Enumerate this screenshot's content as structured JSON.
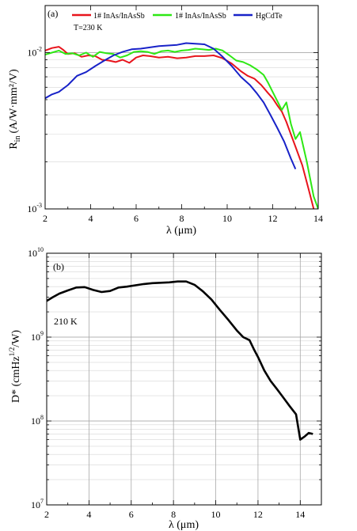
{
  "chart_data": [
    {
      "type": "line",
      "panel_label": "(a)",
      "xlabel": "λ (μm)",
      "ylabel_main": "R",
      "ylabel_sub": "in",
      "ylabel_unit": "(A/W·mm²/V)",
      "xlim": [
        2,
        14
      ],
      "ylim": [
        0.001,
        0.02
      ],
      "yscale": "log",
      "x_ticks": [
        2,
        4,
        6,
        8,
        10,
        12,
        14
      ],
      "y_tick_labels": [
        {
          "value": 0.01,
          "base": "10",
          "exp": "-2"
        },
        {
          "value": 0.001,
          "base": "10",
          "exp": "-3"
        }
      ],
      "grid": "horizontal minor",
      "legend_placement": "top",
      "annotation": "T=230 K",
      "series": [
        {
          "name": "1# InAs/InAsSb",
          "color": "#e8141c",
          "x": [
            2.0,
            2.3,
            2.6,
            2.8,
            3.0,
            3.3,
            3.6,
            3.9,
            4.2,
            4.5,
            4.8,
            5.1,
            5.4,
            5.7,
            6.0,
            6.3,
            6.6,
            7.0,
            7.4,
            7.8,
            8.2,
            8.6,
            9.0,
            9.4,
            9.8,
            10.2,
            10.6,
            10.9,
            11.2,
            11.5,
            11.8,
            12.0,
            12.2,
            12.4,
            12.6,
            12.8,
            13.0,
            13.3,
            13.6,
            13.8
          ],
          "y": [
            0.0103,
            0.0107,
            0.0109,
            0.0104,
            0.0098,
            0.0099,
            0.0094,
            0.0096,
            0.0095,
            0.009,
            0.0089,
            0.0087,
            0.009,
            0.0086,
            0.0093,
            0.0096,
            0.0095,
            0.0093,
            0.0094,
            0.0092,
            0.0093,
            0.0095,
            0.0095,
            0.0096,
            0.0092,
            0.0085,
            0.0076,
            0.0071,
            0.0068,
            0.0062,
            0.0055,
            0.0051,
            0.0046,
            0.0042,
            0.0036,
            0.003,
            0.0025,
            0.0019,
            0.0013,
            0.001
          ]
        },
        {
          "name": "1# InAs/InAsSb",
          "color": "#2ee814",
          "x": [
            2.0,
            2.3,
            2.6,
            2.9,
            3.2,
            3.5,
            3.8,
            4.1,
            4.4,
            4.7,
            5.0,
            5.3,
            5.6,
            5.9,
            6.2,
            6.5,
            6.8,
            7.1,
            7.4,
            7.7,
            8.0,
            8.3,
            8.6,
            8.9,
            9.2,
            9.5,
            9.8,
            10.1,
            10.4,
            10.7,
            11.0,
            11.3,
            11.6,
            11.8,
            12.0,
            12.2,
            12.4,
            12.6,
            12.8,
            13.0,
            13.2,
            13.5,
            13.8,
            14.0
          ],
          "y": [
            0.0097,
            0.01,
            0.0103,
            0.0098,
            0.0099,
            0.0096,
            0.01,
            0.0094,
            0.0101,
            0.0099,
            0.0098,
            0.0093,
            0.0096,
            0.0101,
            0.0102,
            0.0101,
            0.0098,
            0.0102,
            0.0103,
            0.0101,
            0.0103,
            0.0104,
            0.0106,
            0.0105,
            0.0104,
            0.0106,
            0.0103,
            0.0096,
            0.0089,
            0.0087,
            0.0083,
            0.0078,
            0.0072,
            0.0064,
            0.0056,
            0.0049,
            0.0043,
            0.0048,
            0.0035,
            0.0028,
            0.0031,
            0.002,
            0.0012,
            0.001
          ]
        },
        {
          "name": "HgCdTe",
          "color": "#1822c8",
          "x": [
            2.0,
            2.3,
            2.6,
            3.0,
            3.4,
            3.8,
            4.2,
            4.6,
            5.0,
            5.4,
            5.8,
            6.2,
            6.6,
            7.0,
            7.4,
            7.8,
            8.2,
            8.6,
            9.0,
            9.4,
            9.8,
            10.2,
            10.6,
            11.0,
            11.3,
            11.6,
            11.9,
            12.2,
            12.5,
            12.8,
            13.0
          ],
          "y": [
            0.0051,
            0.0054,
            0.0056,
            0.0062,
            0.0071,
            0.0075,
            0.0082,
            0.0089,
            0.0096,
            0.0101,
            0.0105,
            0.0106,
            0.0108,
            0.011,
            0.0111,
            0.0112,
            0.0115,
            0.0114,
            0.0113,
            0.0106,
            0.0094,
            0.0082,
            0.007,
            0.0062,
            0.0055,
            0.0048,
            0.004,
            0.0033,
            0.0027,
            0.0021,
            0.0018
          ]
        }
      ]
    },
    {
      "type": "line",
      "panel_label": "(b)",
      "xlabel": "λ (μm)",
      "ylabel": "D* (cmHz",
      "ylabel_exp": "1/2",
      "ylabel_unit": "/W)",
      "xlim": [
        2,
        15
      ],
      "ylim": [
        10000000,
        10000000000
      ],
      "yscale": "log",
      "x_ticks": [
        2,
        4,
        6,
        8,
        10,
        12,
        14
      ],
      "y_tick_labels": [
        {
          "value": 10000000000,
          "base": "10",
          "exp": "10"
        },
        {
          "value": 1000000000,
          "base": "10",
          "exp": "9"
        },
        {
          "value": 100000000,
          "base": "10",
          "exp": "8"
        },
        {
          "value": 10000000,
          "base": "10",
          "exp": "7"
        }
      ],
      "grid": "on (major vertical and horizontal, minor horizontal)",
      "annotation": "210 K",
      "series": [
        {
          "color": "#000000",
          "x": [
            2.0,
            2.3,
            2.6,
            3.0,
            3.4,
            3.8,
            4.2,
            4.6,
            5.0,
            5.4,
            5.8,
            6.2,
            6.6,
            7.0,
            7.4,
            7.8,
            8.2,
            8.6,
            9.0,
            9.4,
            9.8,
            10.2,
            10.6,
            11.0,
            11.3,
            11.6,
            11.8,
            12.0,
            12.3,
            12.6,
            12.9,
            13.2,
            13.5,
            13.8,
            14.0,
            14.2,
            14.4,
            14.6
          ],
          "y": [
            2700000000,
            3000000000,
            3300000000,
            3600000000,
            3900000000,
            3950000000,
            3650000000,
            3450000000,
            3550000000,
            3900000000,
            4000000000,
            4150000000,
            4300000000,
            4400000000,
            4450000000,
            4500000000,
            4600000000,
            4600000000,
            4200000000,
            3500000000,
            2800000000,
            2100000000,
            1600000000,
            1200000000,
            1000000000,
            920000000,
            720000000,
            580000000,
            400000000,
            300000000,
            240000000,
            190000000,
            150000000,
            120000000,
            60000000,
            65000000,
            72000000,
            70000000
          ]
        }
      ]
    }
  ]
}
